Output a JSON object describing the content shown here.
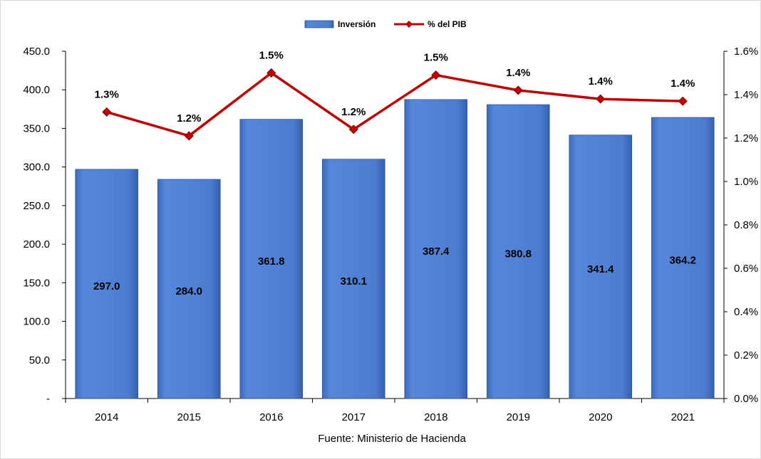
{
  "chart_data": {
    "type": "bar",
    "categories": [
      "2014",
      "2015",
      "2016",
      "2017",
      "2018",
      "2019",
      "2020",
      "2021"
    ],
    "series": [
      {
        "name": "Inversión",
        "type": "bar",
        "axis": "left",
        "values": [
          297.0,
          284.0,
          361.8,
          310.1,
          387.4,
          380.8,
          341.4,
          364.2
        ],
        "labels": [
          "297.0",
          "284.0",
          "361.8",
          "310.1",
          "387.4",
          "380.8",
          "341.4",
          "364.2"
        ],
        "color": "#4f7fd1"
      },
      {
        "name": "% del PIB",
        "type": "line",
        "axis": "right",
        "values": [
          1.32,
          1.21,
          1.5,
          1.24,
          1.49,
          1.42,
          1.38,
          1.37
        ],
        "labels": [
          "1.3%",
          "1.2%",
          "1.5%",
          "1.2%",
          "1.5%",
          "1.4%",
          "1.4%",
          "1.4%"
        ],
        "color": "#c00000"
      }
    ],
    "y_left": {
      "ylim": [
        0,
        450
      ],
      "ticks": [
        0,
        50,
        100,
        150,
        200,
        250,
        300,
        350,
        400,
        450
      ],
      "tick_labels": [
        "-",
        "50.0",
        "100.0",
        "150.0",
        "200.0",
        "250.0",
        "300.0",
        "350.0",
        "400.0",
        "450.0"
      ]
    },
    "y_right": {
      "ylim": [
        0,
        1.6
      ],
      "ticks": [
        0,
        0.2,
        0.4,
        0.6,
        0.8,
        1.0,
        1.2,
        1.4,
        1.6
      ],
      "tick_labels": [
        "0.0%",
        "0.2%",
        "0.4%",
        "0.6%",
        "0.8%",
        "1.0%",
        "1.2%",
        "1.4%",
        "1.6%"
      ]
    },
    "legend": {
      "position": "top",
      "items": [
        "Inversión",
        "% del PIB"
      ]
    },
    "grid": false,
    "source": "Fuente:  Ministerio de Hacienda"
  }
}
